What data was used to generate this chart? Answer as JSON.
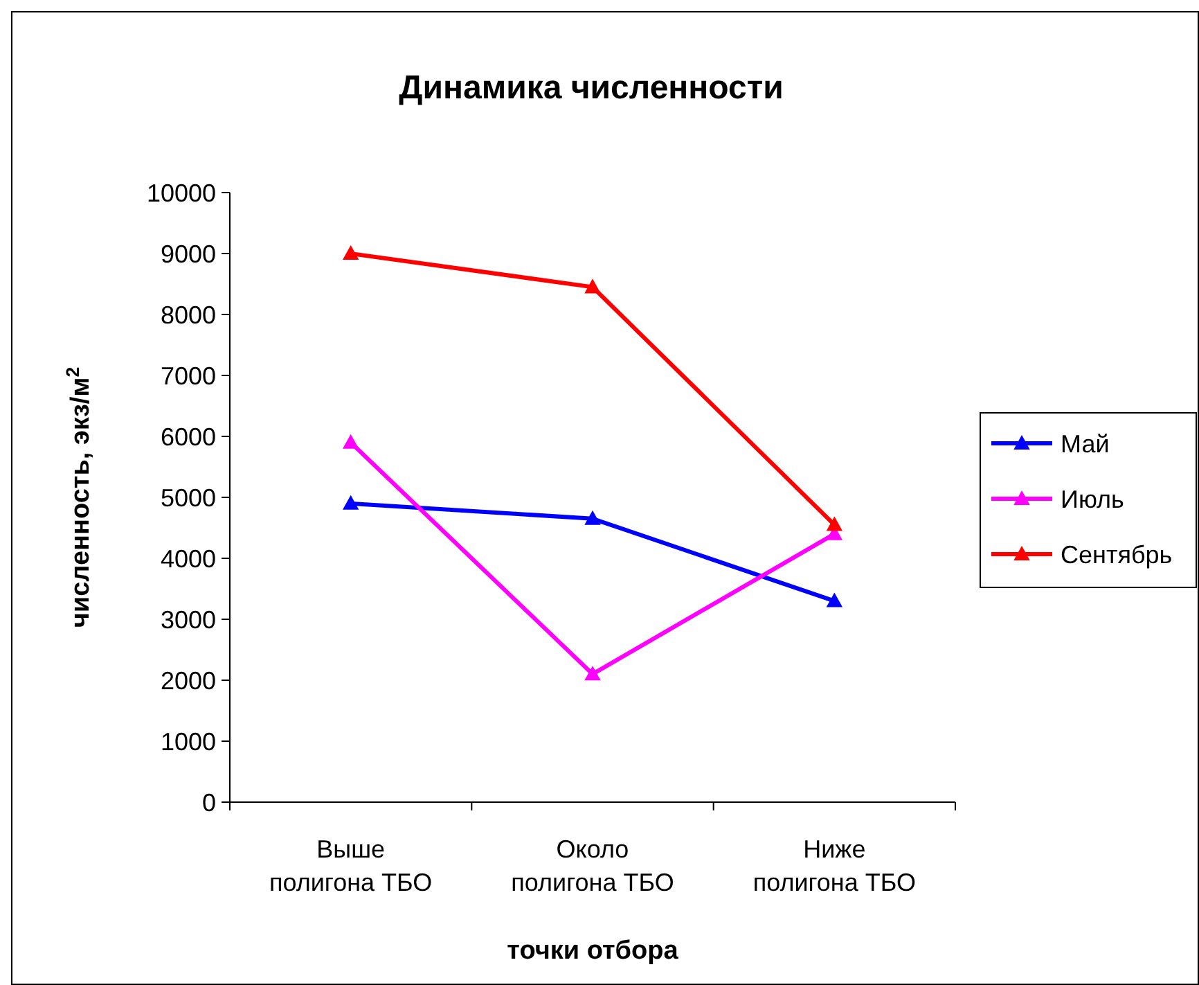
{
  "chart_data": {
    "type": "line",
    "title": "Динамика численности",
    "xlabel": "точки отбора",
    "ylabel": "численность, экз/м$^{2}$",
    "categories": [
      "Выше полигона ТБО",
      "Около полигона ТБО",
      "Ниже полигона ТБО"
    ],
    "series": [
      {
        "name": "Май",
        "color": "#0000ff",
        "values": [
          4900,
          4650,
          3300
        ]
      },
      {
        "name": "Июль",
        "color": "#ff00ff",
        "values": [
          5900,
          2100,
          4400
        ]
      },
      {
        "name": "Сентябрь",
        "color": "#ff0000",
        "values": [
          9000,
          8450,
          4550
        ]
      }
    ],
    "ylim": [
      0,
      10000
    ],
    "yticks": [
      0,
      1000,
      2000,
      3000,
      4000,
      5000,
      6000,
      7000,
      8000,
      9000,
      10000
    ],
    "legend": "right",
    "marker": "triangle",
    "line_style": "solid"
  }
}
